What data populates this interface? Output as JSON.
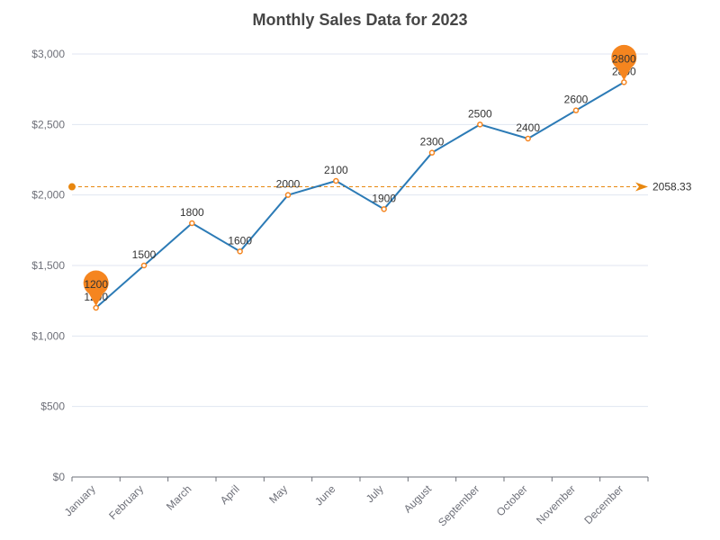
{
  "chart_data": {
    "type": "line",
    "title": "Monthly Sales Data for 2023",
    "categories": [
      "January",
      "February",
      "March",
      "April",
      "May",
      "June",
      "July",
      "August",
      "September",
      "October",
      "November",
      "December"
    ],
    "series": [
      {
        "values": [
          1200,
          1500,
          1800,
          1600,
          2000,
          2100,
          1900,
          2300,
          2500,
          2400,
          2600,
          2800
        ]
      }
    ],
    "ylim": [
      0,
      3000
    ],
    "yticks": [
      0,
      500,
      1000,
      1500,
      2000,
      2500,
      3000
    ],
    "ytick_labels": [
      "$0",
      "$500",
      "$1,000",
      "$1,500",
      "$2,000",
      "$2,500",
      "$3,000"
    ],
    "grid": "horizontal",
    "mark_points": [
      {
        "type": "min",
        "label": "1200"
      },
      {
        "type": "max",
        "label": "2800"
      }
    ],
    "mark_line": {
      "type": "average",
      "value": 2058.33,
      "label": "2058.33"
    },
    "colors": {
      "line": "#2c7bb6",
      "marker": "#f5851f",
      "average_line": "#e8870f",
      "title": "#464646",
      "axis_text": "#6e7079",
      "grid": "#e0e6f1"
    }
  }
}
